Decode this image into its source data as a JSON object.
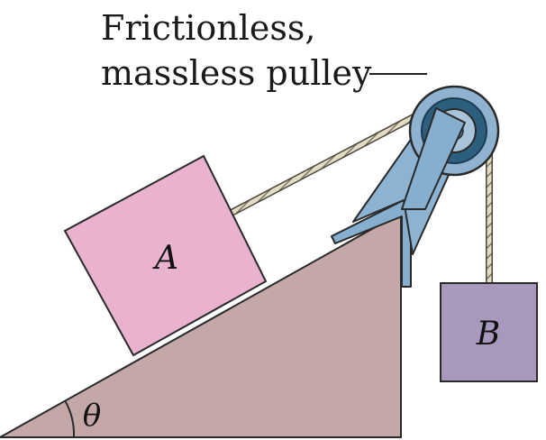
{
  "caption": {
    "line1": "Frictionless,",
    "line2": "massless pulley"
  },
  "labels": {
    "block_a": "A",
    "block_b": "B",
    "angle": "θ"
  },
  "colors": {
    "incline": "#c4a8a8",
    "block_a": "#e9b2cf",
    "block_b": "#a898bc",
    "pulley_outer": "#8eb2cf",
    "pulley_ring": "#2c5f7e",
    "pulley_hub": "#a9c3d8",
    "bracket": "#86aece",
    "rope": "#d6d0b9",
    "outline": "#2a2a2a"
  }
}
